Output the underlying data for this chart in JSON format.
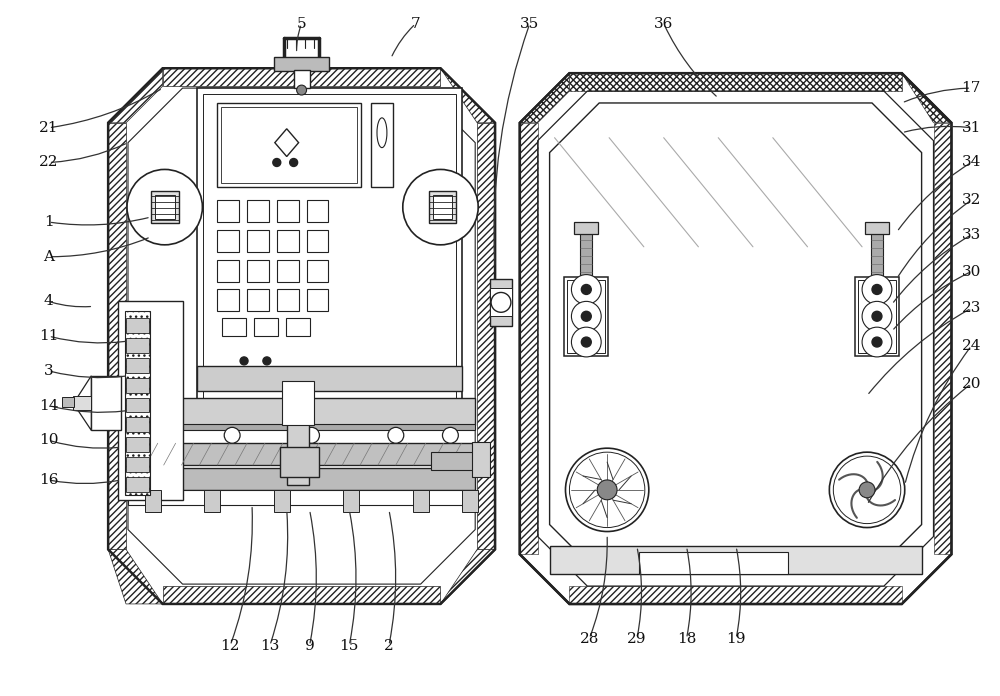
{
  "bg_color": "#ffffff",
  "line_color": "#222222",
  "lw": 1.0,
  "fig_width": 10.0,
  "fig_height": 6.96,
  "dpi": 100
}
